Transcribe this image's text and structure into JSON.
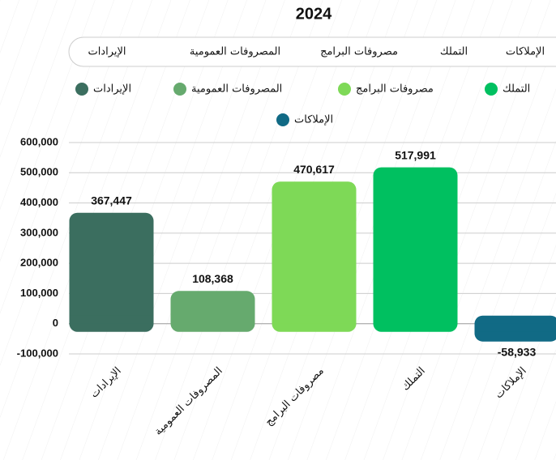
{
  "chart_data": {
    "type": "bar",
    "title": "2024",
    "categories": [
      "الإيرادات",
      "المصروفات العمومية",
      "مصروفات البرامج",
      "التملك",
      "الإملاكات"
    ],
    "values": [
      367447,
      108368,
      470617,
      517991,
      -58933
    ],
    "value_labels": [
      "367,447",
      "108,368",
      "470,617",
      "517,991",
      "-58,933"
    ],
    "colors": [
      "#3b6e5f",
      "#66aa6e",
      "#7ed957",
      "#00c060",
      "#116a85"
    ],
    "ylim": [
      -100000,
      600000
    ],
    "yticks": [
      {
        "value": -100000,
        "label": "-100,000"
      },
      0,
      {
        "value": 100000,
        "label": "100,000"
      },
      {
        "value": 200000,
        "label": "200,000"
      },
      {
        "value": 300000,
        "label": "300,000"
      },
      {
        "value": 400000,
        "label": "400,000"
      },
      {
        "value": 500000,
        "label": "500,000"
      },
      {
        "value": 600000,
        "label": "600,000"
      }
    ],
    "grid": true
  }
}
